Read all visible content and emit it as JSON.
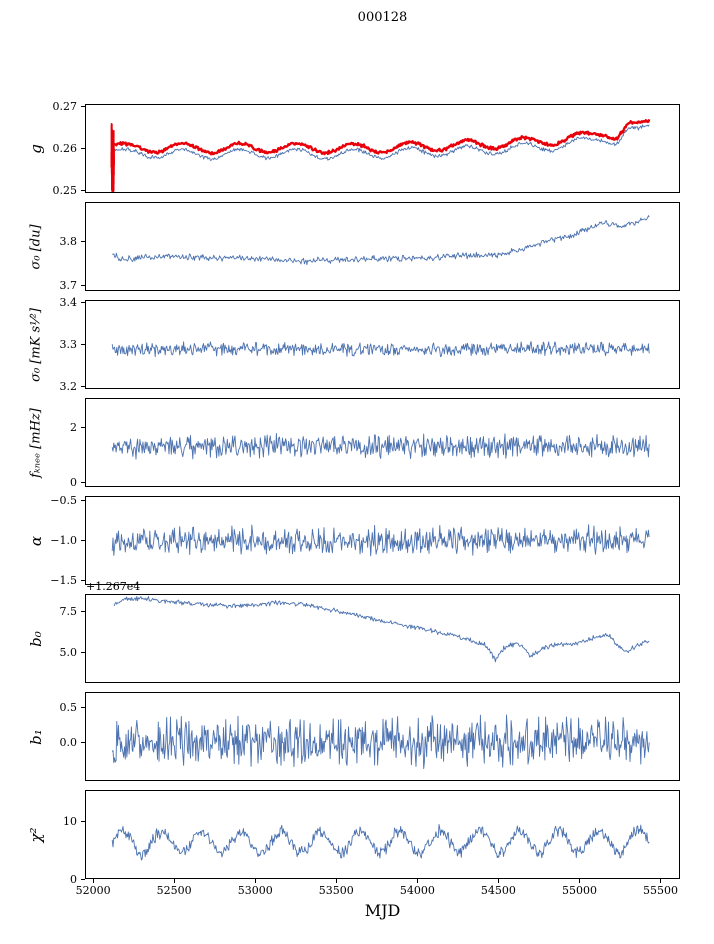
{
  "title": "000128",
  "xlabel": "MJD",
  "chart_data": {
    "type": "line",
    "title": "000128",
    "x_axis": {
      "min": 51950,
      "max": 55620,
      "label": "MJD",
      "ticks": [
        {
          "v": 52000,
          "label": "52000"
        },
        {
          "v": 52500,
          "label": "52500"
        },
        {
          "v": 53000,
          "label": "53000"
        },
        {
          "v": 53500,
          "label": "53500"
        },
        {
          "v": 54000,
          "label": "54000"
        },
        {
          "v": 54500,
          "label": "54500"
        },
        {
          "v": 55000,
          "label": "55000"
        },
        {
          "v": 55500,
          "label": "55500"
        }
      ]
    },
    "colors": {
      "fit_line": "#4c72b0",
      "smooth_line": "#e8000b",
      "axis": "#000000"
    },
    "panels": [
      {
        "id": "g",
        "ylabel": "g",
        "ylim": [
          0.2493,
          0.2707
        ],
        "yticks": [
          {
            "v": 0.25,
            "label": "0.25"
          },
          {
            "v": 0.26,
            "label": "0.26"
          },
          {
            "v": 0.27,
            "label": "0.27"
          }
        ],
        "series": [
          {
            "name": "g-fit",
            "color": "#4c72b0",
            "lw": 0.9,
            "noise": 0.00038,
            "wiggle": {
              "amp": 0.0011,
              "period": 350
            },
            "keypoints": [
              [
                52118,
                0.2592
              ],
              [
                52200,
                0.2586
              ],
              [
                52350,
                0.2589
              ],
              [
                52600,
                0.2586
              ],
              [
                52900,
                0.2587
              ],
              [
                53200,
                0.2588
              ],
              [
                53500,
                0.2586
              ],
              [
                53800,
                0.2588
              ],
              [
                54100,
                0.2592
              ],
              [
                54400,
                0.2596
              ],
              [
                54700,
                0.2602
              ],
              [
                54900,
                0.2608
              ],
              [
                55050,
                0.2618
              ],
              [
                55150,
                0.2628
              ],
              [
                55230,
                0.2618
              ],
              [
                55300,
                0.2642
              ],
              [
                55360,
                0.2638
              ],
              [
                55430,
                0.2652
              ]
            ]
          },
          {
            "name": "g-smooth",
            "color": "#e8000b",
            "lw": 2.4,
            "noise": 0.00032,
            "wiggle": {
              "amp": 0.0011,
              "period": 350
            },
            "keypoints": [
              [
                52118,
                0.2607
              ],
              [
                52200,
                0.26
              ],
              [
                52350,
                0.2602
              ],
              [
                52600,
                0.26
              ],
              [
                52900,
                0.2601
              ],
              [
                53200,
                0.2602
              ],
              [
                53500,
                0.26
              ],
              [
                53800,
                0.2602
              ],
              [
                54100,
                0.2606
              ],
              [
                54400,
                0.261
              ],
              [
                54700,
                0.2616
              ],
              [
                54900,
                0.2621
              ],
              [
                55050,
                0.263
              ],
              [
                55150,
                0.2641
              ],
              [
                55230,
                0.263
              ],
              [
                55300,
                0.2655
              ],
              [
                55360,
                0.265
              ],
              [
                55430,
                0.2663
              ]
            ]
          },
          {
            "name": "g-start-transient",
            "color": "#e8000b",
            "lw": 1.6,
            "noise": 0.0078,
            "steps": 70,
            "keypoints": [
              [
                52112,
                0.258
              ],
              [
                52130,
                0.258
              ]
            ]
          }
        ]
      },
      {
        "id": "sigma0-du",
        "ylabel": "σ₀ [du]",
        "ylim": [
          3.688,
          3.888
        ],
        "yticks": [
          {
            "v": 3.7,
            "label": "3.7"
          },
          {
            "v": 3.8,
            "label": "3.8"
          }
        ],
        "series": [
          {
            "name": "sigma0-du-series",
            "color": "#4c72b0",
            "lw": 0.9,
            "noise": 0.0055,
            "keypoints": [
              [
                52118,
                3.772
              ],
              [
                52170,
                3.758
              ],
              [
                52300,
                3.764
              ],
              [
                52500,
                3.766
              ],
              [
                52700,
                3.763
              ],
              [
                52900,
                3.762
              ],
              [
                53100,
                3.76
              ],
              [
                53300,
                3.755
              ],
              [
                53500,
                3.758
              ],
              [
                53700,
                3.76
              ],
              [
                53900,
                3.761
              ],
              [
                54100,
                3.763
              ],
              [
                54300,
                3.768
              ],
              [
                54500,
                3.77
              ],
              [
                54650,
                3.782
              ],
              [
                54800,
                3.8
              ],
              [
                54950,
                3.812
              ],
              [
                55050,
                3.828
              ],
              [
                55150,
                3.842
              ],
              [
                55250,
                3.835
              ],
              [
                55320,
                3.84
              ],
              [
                55430,
                3.852
              ]
            ]
          }
        ]
      },
      {
        "id": "sigma0-mk",
        "ylabel": "σ₀ [mK s¹⁄²]",
        "ylim": [
          3.193,
          3.407
        ],
        "yticks": [
          {
            "v": 3.2,
            "label": "3.2"
          },
          {
            "v": 3.3,
            "label": "3.3"
          },
          {
            "v": 3.4,
            "label": "3.4"
          }
        ],
        "series": [
          {
            "name": "sigma0-mk-series",
            "color": "#4c72b0",
            "lw": 0.9,
            "noise": 0.0125,
            "steps": 700,
            "keypoints": [
              [
                52118,
                3.287
              ],
              [
                53000,
                3.291
              ],
              [
                54000,
                3.288
              ],
              [
                55430,
                3.291
              ]
            ]
          }
        ]
      },
      {
        "id": "fknee",
        "ylabel": "fₖₙₑₑ [mHz]",
        "ylim": [
          -0.15,
          3.05
        ],
        "yticks": [
          {
            "v": 0,
            "label": "0"
          },
          {
            "v": 2,
            "label": "2"
          }
        ],
        "series": [
          {
            "name": "fknee-series",
            "color": "#4c72b0",
            "lw": 0.9,
            "noise": 0.33,
            "steps": 700,
            "keypoints": [
              [
                52118,
                1.32
              ],
              [
                55430,
                1.3
              ]
            ]
          }
        ]
      },
      {
        "id": "alpha",
        "ylabel": "α",
        "ylim": [
          -1.56,
          -0.44
        ],
        "yticks": [
          {
            "v": -1.5,
            "label": "−1.5"
          },
          {
            "v": -1.0,
            "label": "−1.0"
          },
          {
            "v": -0.5,
            "label": "−0.5"
          }
        ],
        "series": [
          {
            "name": "alpha-series",
            "color": "#4c72b0",
            "lw": 0.9,
            "noise": 0.135,
            "steps": 700,
            "keypoints": [
              [
                52118,
                -1.0
              ],
              [
                55430,
                -1.0
              ]
            ]
          }
        ]
      },
      {
        "id": "b0",
        "ylabel": "b₀",
        "offset_text": "+1.267e4",
        "ylim": [
          3.1,
          8.6
        ],
        "yticks": [
          {
            "v": 5.0,
            "label": "5.0"
          },
          {
            "v": 7.5,
            "label": "7.5"
          }
        ],
        "series": [
          {
            "name": "b0-series",
            "color": "#4c72b0",
            "lw": 0.9,
            "noise": 0.12,
            "keypoints": [
              [
                52130,
                7.9
              ],
              [
                52200,
                8.3
              ],
              [
                52280,
                8.35
              ],
              [
                52400,
                8.2
              ],
              [
                52550,
                8.05
              ],
              [
                52700,
                7.95
              ],
              [
                52850,
                7.85
              ],
              [
                53000,
                7.95
              ],
              [
                53150,
                8.05
              ],
              [
                53300,
                7.95
              ],
              [
                53400,
                7.75
              ],
              [
                53550,
                7.45
              ],
              [
                53700,
                7.1
              ],
              [
                53850,
                6.8
              ],
              [
                54000,
                6.5
              ],
              [
                54150,
                6.2
              ],
              [
                54300,
                5.85
              ],
              [
                54420,
                5.45
              ],
              [
                54480,
                4.55
              ],
              [
                54540,
                5.35
              ],
              [
                54620,
                5.55
              ],
              [
                54700,
                4.75
              ],
              [
                54780,
                5.25
              ],
              [
                54880,
                5.5
              ],
              [
                54980,
                5.55
              ],
              [
                55080,
                5.85
              ],
              [
                55180,
                6.05
              ],
              [
                55240,
                5.35
              ],
              [
                55300,
                5.05
              ],
              [
                55360,
                5.45
              ],
              [
                55430,
                5.75
              ]
            ]
          }
        ]
      },
      {
        "id": "b1",
        "ylabel": "b₁",
        "ylim": [
          -0.56,
          0.72
        ],
        "yticks": [
          {
            "v": 0.0,
            "label": "0.0"
          },
          {
            "v": 0.5,
            "label": "0.5"
          }
        ],
        "series": [
          {
            "name": "b1-series",
            "color": "#4c72b0",
            "lw": 0.9,
            "noise": 0.27,
            "steps": 700,
            "keypoints": [
              [
                52118,
                0.01
              ],
              [
                55430,
                0.0
              ]
            ]
          }
        ]
      },
      {
        "id": "chi2",
        "ylabel": "χ²",
        "ylim": [
          0,
          15.6
        ],
        "yticks": [
          {
            "v": 0,
            "label": "0"
          },
          {
            "v": 10,
            "label": "10"
          }
        ],
        "series": [
          {
            "name": "chi2-series",
            "color": "#4c72b0",
            "lw": 0.9,
            "noise": 0.85,
            "steps": 700,
            "wiggle": {
              "amp": 1.9,
              "period": 245
            },
            "keypoints": [
              [
                52118,
                6.4
              ],
              [
                55430,
                6.6
              ]
            ]
          }
        ]
      }
    ]
  }
}
